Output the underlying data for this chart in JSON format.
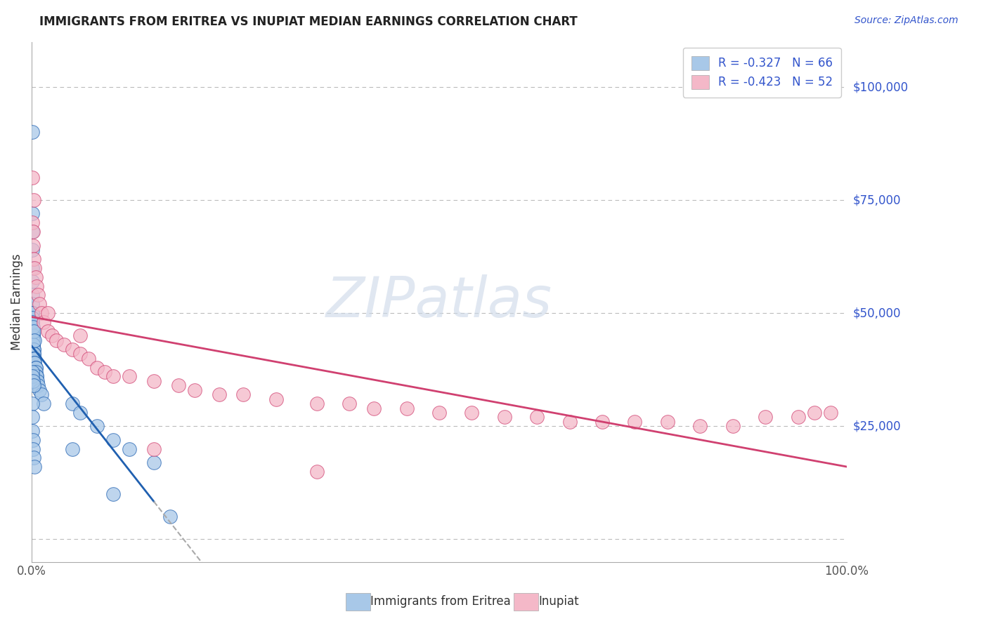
{
  "title": "IMMIGRANTS FROM ERITREA VS INUPIAT MEDIAN EARNINGS CORRELATION CHART",
  "source_text": "Source: ZipAtlas.com",
  "ylabel": "Median Earnings",
  "xlim": [
    0.0,
    1.0
  ],
  "ylim": [
    -5000,
    110000
  ],
  "ytick_vals": [
    0,
    25000,
    50000,
    75000,
    100000
  ],
  "ytick_labels": [
    "",
    "$25,000",
    "$50,000",
    "$75,000",
    "$100,000"
  ],
  "xticks": [
    0.0,
    1.0
  ],
  "xtick_labels": [
    "0.0%",
    "100.0%"
  ],
  "legend_r1": "R = -0.327",
  "legend_n1": "N = 66",
  "legend_r2": "R = -0.423",
  "legend_n2": "N = 52",
  "color_eritrea": "#a8c8e8",
  "color_inupiat": "#f4b8c8",
  "line_color_eritrea": "#2060b0",
  "line_color_inupiat": "#d04070",
  "watermark_color": "#ccd8e8",
  "background_color": "#ffffff",
  "grid_color": "#bbbbbb",
  "title_color": "#222222",
  "source_color": "#3355cc",
  "yaxis_label_color": "#3355cc",
  "legend_text_color": "#3355cc",
  "bottom_legend_text_color": "#333333",
  "eritrea_x": [
    0.001,
    0.001,
    0.001,
    0.001,
    0.001,
    0.001,
    0.001,
    0.001,
    0.001,
    0.001,
    0.001,
    0.001,
    0.002,
    0.002,
    0.002,
    0.002,
    0.002,
    0.002,
    0.002,
    0.002,
    0.002,
    0.003,
    0.003,
    0.003,
    0.003,
    0.003,
    0.003,
    0.004,
    0.004,
    0.004,
    0.005,
    0.005,
    0.005,
    0.006,
    0.006,
    0.007,
    0.008,
    0.01,
    0.012,
    0.015,
    0.001,
    0.001,
    0.001,
    0.002,
    0.003,
    0.004,
    0.05,
    0.06,
    0.08,
    0.1,
    0.12,
    0.15,
    0.001,
    0.001,
    0.002,
    0.003,
    0.001,
    0.001,
    0.001,
    0.002,
    0.002,
    0.003,
    0.004,
    0.05,
    0.1,
    0.17
  ],
  "eritrea_y": [
    90000,
    72000,
    68000,
    64000,
    60000,
    57000,
    54000,
    52000,
    50000,
    49000,
    48000,
    47000,
    46000,
    46000,
    45000,
    45000,
    44000,
    44000,
    43000,
    43000,
    43000,
    42000,
    42000,
    41000,
    41000,
    40000,
    40000,
    40000,
    39000,
    39000,
    38000,
    38000,
    37000,
    36000,
    36000,
    35000,
    34000,
    33000,
    32000,
    30000,
    50000,
    49000,
    48000,
    47000,
    46000,
    44000,
    30000,
    28000,
    25000,
    22000,
    20000,
    17000,
    37000,
    36000,
    35000,
    34000,
    30000,
    27000,
    24000,
    22000,
    20000,
    18000,
    16000,
    20000,
    10000,
    5000
  ],
  "inupiat_x": [
    0.001,
    0.001,
    0.002,
    0.002,
    0.003,
    0.004,
    0.005,
    0.006,
    0.008,
    0.01,
    0.012,
    0.015,
    0.02,
    0.025,
    0.03,
    0.04,
    0.05,
    0.06,
    0.07,
    0.08,
    0.09,
    0.1,
    0.12,
    0.15,
    0.18,
    0.2,
    0.23,
    0.26,
    0.3,
    0.35,
    0.39,
    0.42,
    0.46,
    0.5,
    0.54,
    0.58,
    0.62,
    0.66,
    0.7,
    0.74,
    0.78,
    0.82,
    0.86,
    0.9,
    0.94,
    0.96,
    0.98,
    0.003,
    0.02,
    0.06,
    0.15,
    0.35
  ],
  "inupiat_y": [
    80000,
    70000,
    68000,
    65000,
    62000,
    60000,
    58000,
    56000,
    54000,
    52000,
    50000,
    48000,
    46000,
    45000,
    44000,
    43000,
    42000,
    41000,
    40000,
    38000,
    37000,
    36000,
    36000,
    35000,
    34000,
    33000,
    32000,
    32000,
    31000,
    30000,
    30000,
    29000,
    29000,
    28000,
    28000,
    27000,
    27000,
    26000,
    26000,
    26000,
    26000,
    25000,
    25000,
    27000,
    27000,
    28000,
    28000,
    75000,
    50000,
    45000,
    20000,
    15000
  ]
}
